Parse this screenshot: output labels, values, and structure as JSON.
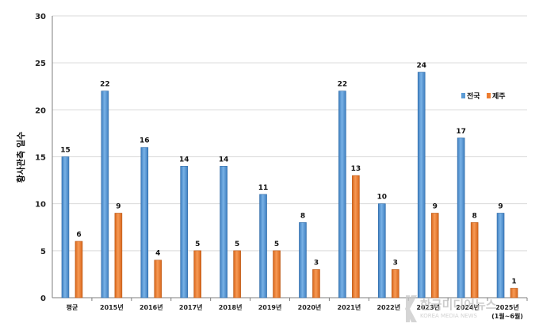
{
  "chart_data": {
    "type": "bar",
    "categories": [
      "평균",
      "2015년",
      "2016년",
      "2017년",
      "2018년",
      "2019년",
      "2020년",
      "2021년",
      "2022년",
      "2023년",
      "2024년",
      "2025년"
    ],
    "category_sublabels": [
      "",
      "",
      "",
      "",
      "",
      "",
      "",
      "",
      "",
      "",
      "",
      "(1월~6월)"
    ],
    "series": [
      {
        "name": "전국",
        "values": [
          15,
          22,
          16,
          14,
          14,
          11,
          8,
          22,
          10,
          24,
          17,
          9
        ],
        "color": "#5b9bd5"
      },
      {
        "name": "제주",
        "values": [
          6,
          9,
          4,
          5,
          5,
          5,
          3,
          13,
          3,
          9,
          8,
          1
        ],
        "color": "#ed7d31"
      }
    ],
    "ylabel": "황사관측 일수",
    "ylim": [
      0,
      30
    ],
    "yticks": [
      0,
      5,
      10,
      15,
      20,
      25,
      30
    ],
    "grid": true,
    "legend_position": "right"
  },
  "watermark": {
    "logo_text": "한국미디어뉴스",
    "sub_text": "KOREA MEDIA NEWS"
  }
}
